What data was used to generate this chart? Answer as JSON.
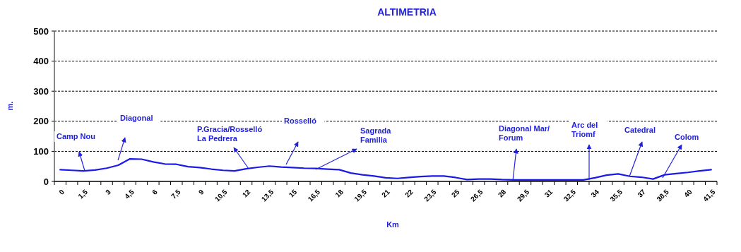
{
  "chart_data": {
    "type": "line",
    "title": "ALTIMETRIA",
    "xlabel": "Km",
    "ylabel": "m.",
    "categories": [
      "0",
      null,
      "1,5",
      null,
      "3",
      null,
      "4,5",
      null,
      "6",
      null,
      "7,5",
      null,
      "9",
      null,
      "10,5",
      null,
      "12",
      null,
      "13,5",
      null,
      "15",
      null,
      "16,5",
      null,
      "18",
      null,
      "19,5",
      null,
      "21",
      null,
      "22",
      null,
      "23,5",
      null,
      "25",
      null,
      "26,5",
      null,
      "28",
      null,
      "29,5",
      null,
      "31",
      null,
      "32,5",
      null,
      "34",
      null,
      "35,5",
      null,
      "37",
      null,
      "38,5",
      null,
      "40",
      null,
      "41,5"
    ],
    "series": [
      {
        "color": "#1a1ae6",
        "values": [
          39,
          37,
          35,
          38,
          44,
          54,
          75,
          74,
          65,
          58,
          57,
          49,
          46,
          41,
          37,
          35,
          42,
          47,
          51,
          48,
          46,
          44,
          43,
          41,
          39,
          28,
          22,
          18,
          12,
          10,
          13,
          16,
          18,
          18,
          13,
          6,
          8,
          8,
          6,
          5,
          5,
          5,
          5,
          5,
          5,
          5,
          12,
          21,
          25,
          17,
          14,
          8,
          22,
          26,
          30,
          35,
          39
        ]
      }
    ],
    "ylim": [
      0,
      500
    ],
    "yticks": [
      0,
      100,
      200,
      300,
      400,
      500
    ],
    "grid": "y",
    "marker": "none",
    "line_style": "solid",
    "annotations": [
      "Camp Nou",
      "Diagonal",
      "P.Gracia/Rosselló\nLa Pedrera",
      "Rosselló",
      "Sagrada\nFamilia",
      "Diagonal Mar/\nForum",
      "Arc del\nTriomf",
      "Catedral",
      "Colom"
    ]
  }
}
